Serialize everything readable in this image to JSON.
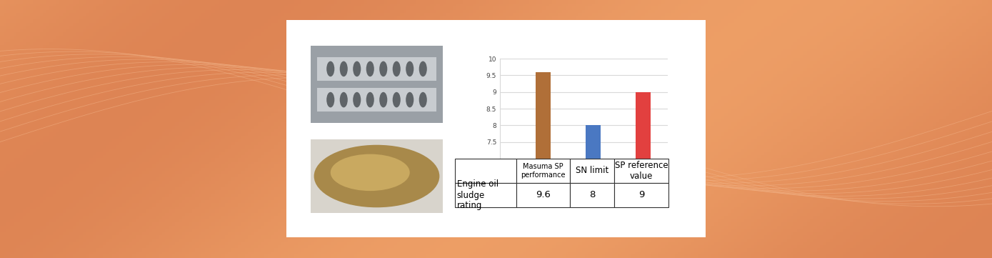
{
  "chart_data": {
    "type": "bar",
    "categories": [
      "Masuma SP performance",
      "SN limit",
      "SP reference value"
    ],
    "values": [
      9.6,
      8,
      9
    ],
    "colors": [
      "#b06f38",
      "#4a78c2",
      "#e2403f"
    ],
    "row_label": "Engine oil sludge rating",
    "ylim": [
      7,
      10
    ],
    "yticks": [
      7.5,
      8,
      8.5,
      9,
      9.5,
      10
    ],
    "grid": true
  }
}
